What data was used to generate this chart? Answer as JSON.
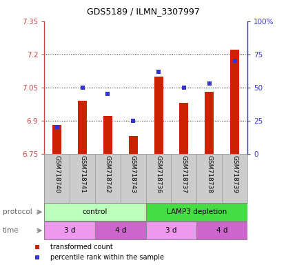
{
  "title": "GDS5189 / ILMN_3307997",
  "samples": [
    "GSM718740",
    "GSM718741",
    "GSM718742",
    "GSM718743",
    "GSM718736",
    "GSM718737",
    "GSM718738",
    "GSM718739"
  ],
  "transformed_counts": [
    6.88,
    6.99,
    6.92,
    6.83,
    7.1,
    6.98,
    7.03,
    7.22
  ],
  "percentile_ranks": [
    20,
    50,
    45,
    25,
    62,
    50,
    53,
    70
  ],
  "ylim_left": [
    6.75,
    7.35
  ],
  "ylim_right": [
    0,
    100
  ],
  "yticks_left": [
    6.75,
    6.9,
    7.05,
    7.2,
    7.35
  ],
  "yticks_right": [
    0,
    25,
    50,
    75,
    100
  ],
  "ytick_labels_left": [
    "6.75",
    "6.9",
    "7.05",
    "7.2",
    "7.35"
  ],
  "ytick_labels_right": [
    "0",
    "25",
    "50",
    "75",
    "100%"
  ],
  "bar_color": "#cc2200",
  "dot_color": "#3333cc",
  "protocol_groups": [
    {
      "label": "control",
      "start": 0,
      "end": 4,
      "color": "#bbffbb"
    },
    {
      "label": "LAMP3 depletion",
      "start": 4,
      "end": 8,
      "color": "#44dd44"
    }
  ],
  "time_groups": [
    {
      "label": "3 d",
      "start": 0,
      "end": 2,
      "color": "#ee99ee"
    },
    {
      "label": "4 d",
      "start": 2,
      "end": 4,
      "color": "#cc66cc"
    },
    {
      "label": "3 d",
      "start": 4,
      "end": 6,
      "color": "#ee99ee"
    },
    {
      "label": "4 d",
      "start": 6,
      "end": 8,
      "color": "#cc66cc"
    }
  ],
  "legend_items": [
    {
      "label": "transformed count",
      "color": "#cc2200"
    },
    {
      "label": "percentile rank within the sample",
      "color": "#3333cc"
    }
  ],
  "left_axis_color": "#cc4444",
  "right_axis_color": "#3333cc",
  "sample_bg_color": "#cccccc",
  "protocol_label": "protocol",
  "time_label": "time",
  "label_text_color": "#666666",
  "bar_width": 0.35
}
